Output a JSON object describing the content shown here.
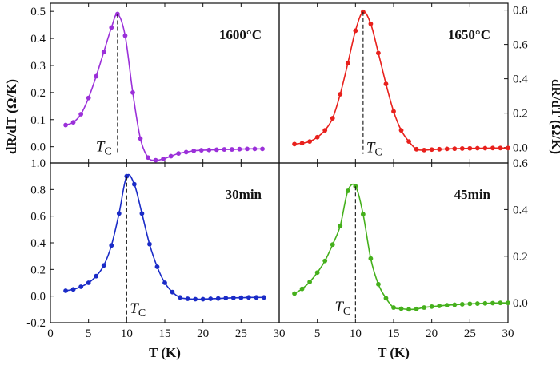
{
  "chart_data": {
    "type": "line",
    "x_axis": {
      "label": "T (K)",
      "ticks": [
        0,
        5,
        10,
        15,
        20,
        25,
        30
      ],
      "xlim": [
        0,
        30
      ]
    },
    "y_axis_label_left": "dR/dT (Ω/K)",
    "y_axis_label_right": "dR/dT (Ω/K)",
    "tc_label": "TC",
    "panels": [
      {
        "title": "1600°C",
        "color": "#9b30d9",
        "ylim": [
          -0.06,
          0.53
        ],
        "yticks": [
          0.0,
          0.1,
          0.2,
          0.3,
          0.4,
          0.5
        ],
        "ytick_labels": [
          "0.0",
          "0.1",
          "0.2",
          "0.3",
          "0.4",
          "0.5"
        ],
        "y_side": "left",
        "tc": 8.8,
        "x": [
          2,
          3,
          4,
          5,
          6,
          7,
          8,
          8.8,
          9.8,
          10.8,
          11.8,
          12.8,
          13.8,
          14.8,
          15.8,
          16.8,
          17.8,
          18.8,
          19.8,
          20.8,
          21.8,
          22.8,
          23.8,
          24.8,
          25.8,
          26.8,
          27.8
        ],
        "y": [
          0.08,
          0.09,
          0.12,
          0.18,
          0.26,
          0.35,
          0.44,
          0.49,
          0.41,
          0.2,
          0.03,
          -0.04,
          -0.05,
          -0.045,
          -0.035,
          -0.025,
          -0.02,
          -0.015,
          -0.013,
          -0.012,
          -0.011,
          -0.01,
          -0.01,
          -0.009,
          -0.008,
          -0.008,
          -0.008
        ]
      },
      {
        "title": "1650°C",
        "color": "#e8201c",
        "ylim": [
          -0.09,
          0.84
        ],
        "yticks": [
          0.0,
          0.2,
          0.4,
          0.6,
          0.8
        ],
        "ytick_labels": [
          "0.0",
          "0.2",
          "0.4",
          "0.6",
          "0.8"
        ],
        "y_side": "right",
        "tc": 11.0,
        "x": [
          2,
          3,
          4,
          5,
          6,
          7,
          8,
          9,
          10,
          11,
          12,
          13,
          14,
          15,
          16,
          17,
          18,
          19,
          20,
          21,
          22,
          23,
          24,
          25,
          26,
          27,
          28,
          29,
          30
        ],
        "y": [
          0.02,
          0.025,
          0.035,
          0.06,
          0.1,
          0.17,
          0.31,
          0.49,
          0.68,
          0.79,
          0.72,
          0.55,
          0.37,
          0.21,
          0.1,
          0.035,
          -0.01,
          -0.015,
          -0.012,
          -0.01,
          -0.008,
          -0.007,
          -0.006,
          -0.005,
          -0.004,
          -0.004,
          -0.003,
          -0.003,
          -0.003
        ]
      },
      {
        "title": "30min",
        "color": "#1a2bc7",
        "ylim": [
          -0.2,
          1.0
        ],
        "yticks": [
          -0.2,
          0.0,
          0.2,
          0.4,
          0.6,
          0.8,
          1.0
        ],
        "ytick_labels": [
          "-0.2",
          "0.0",
          "0.2",
          "0.4",
          "0.6",
          "0.8",
          "1.0"
        ],
        "y_side": "left",
        "tc": 10.0,
        "x": [
          2,
          3,
          4,
          5,
          6,
          7,
          8,
          9,
          10,
          11,
          12,
          13,
          14,
          15,
          16,
          17,
          18,
          19,
          20,
          21,
          22,
          23,
          24,
          25,
          26,
          27,
          28
        ],
        "y": [
          0.04,
          0.05,
          0.07,
          0.1,
          0.15,
          0.23,
          0.38,
          0.62,
          0.9,
          0.84,
          0.62,
          0.39,
          0.22,
          0.1,
          0.03,
          -0.01,
          -0.02,
          -0.023,
          -0.023,
          -0.02,
          -0.018,
          -0.015,
          -0.013,
          -0.012,
          -0.01,
          -0.01,
          -0.01
        ]
      },
      {
        "title": "45min",
        "color": "#45b01c",
        "ylim": [
          -0.085,
          0.6
        ],
        "yticks": [
          0.0,
          0.2,
          0.4,
          0.6
        ],
        "ytick_labels": [
          "0.0",
          "0.2",
          "0.4",
          "0.6"
        ],
        "y_side": "right",
        "tc": 10.0,
        "x": [
          2,
          3,
          4,
          5,
          6,
          7,
          8,
          9,
          10,
          11,
          12,
          13,
          14,
          15,
          16,
          17,
          18,
          19,
          20,
          21,
          22,
          23,
          24,
          25,
          26,
          27,
          28,
          29,
          30
        ],
        "y": [
          0.04,
          0.06,
          0.09,
          0.13,
          0.18,
          0.25,
          0.33,
          0.48,
          0.5,
          0.38,
          0.19,
          0.08,
          0.02,
          -0.02,
          -0.025,
          -0.028,
          -0.026,
          -0.02,
          -0.016,
          -0.013,
          -0.01,
          -0.008,
          -0.006,
          -0.004,
          -0.003,
          -0.002,
          -0.001,
          0.0,
          0.0
        ]
      }
    ]
  }
}
